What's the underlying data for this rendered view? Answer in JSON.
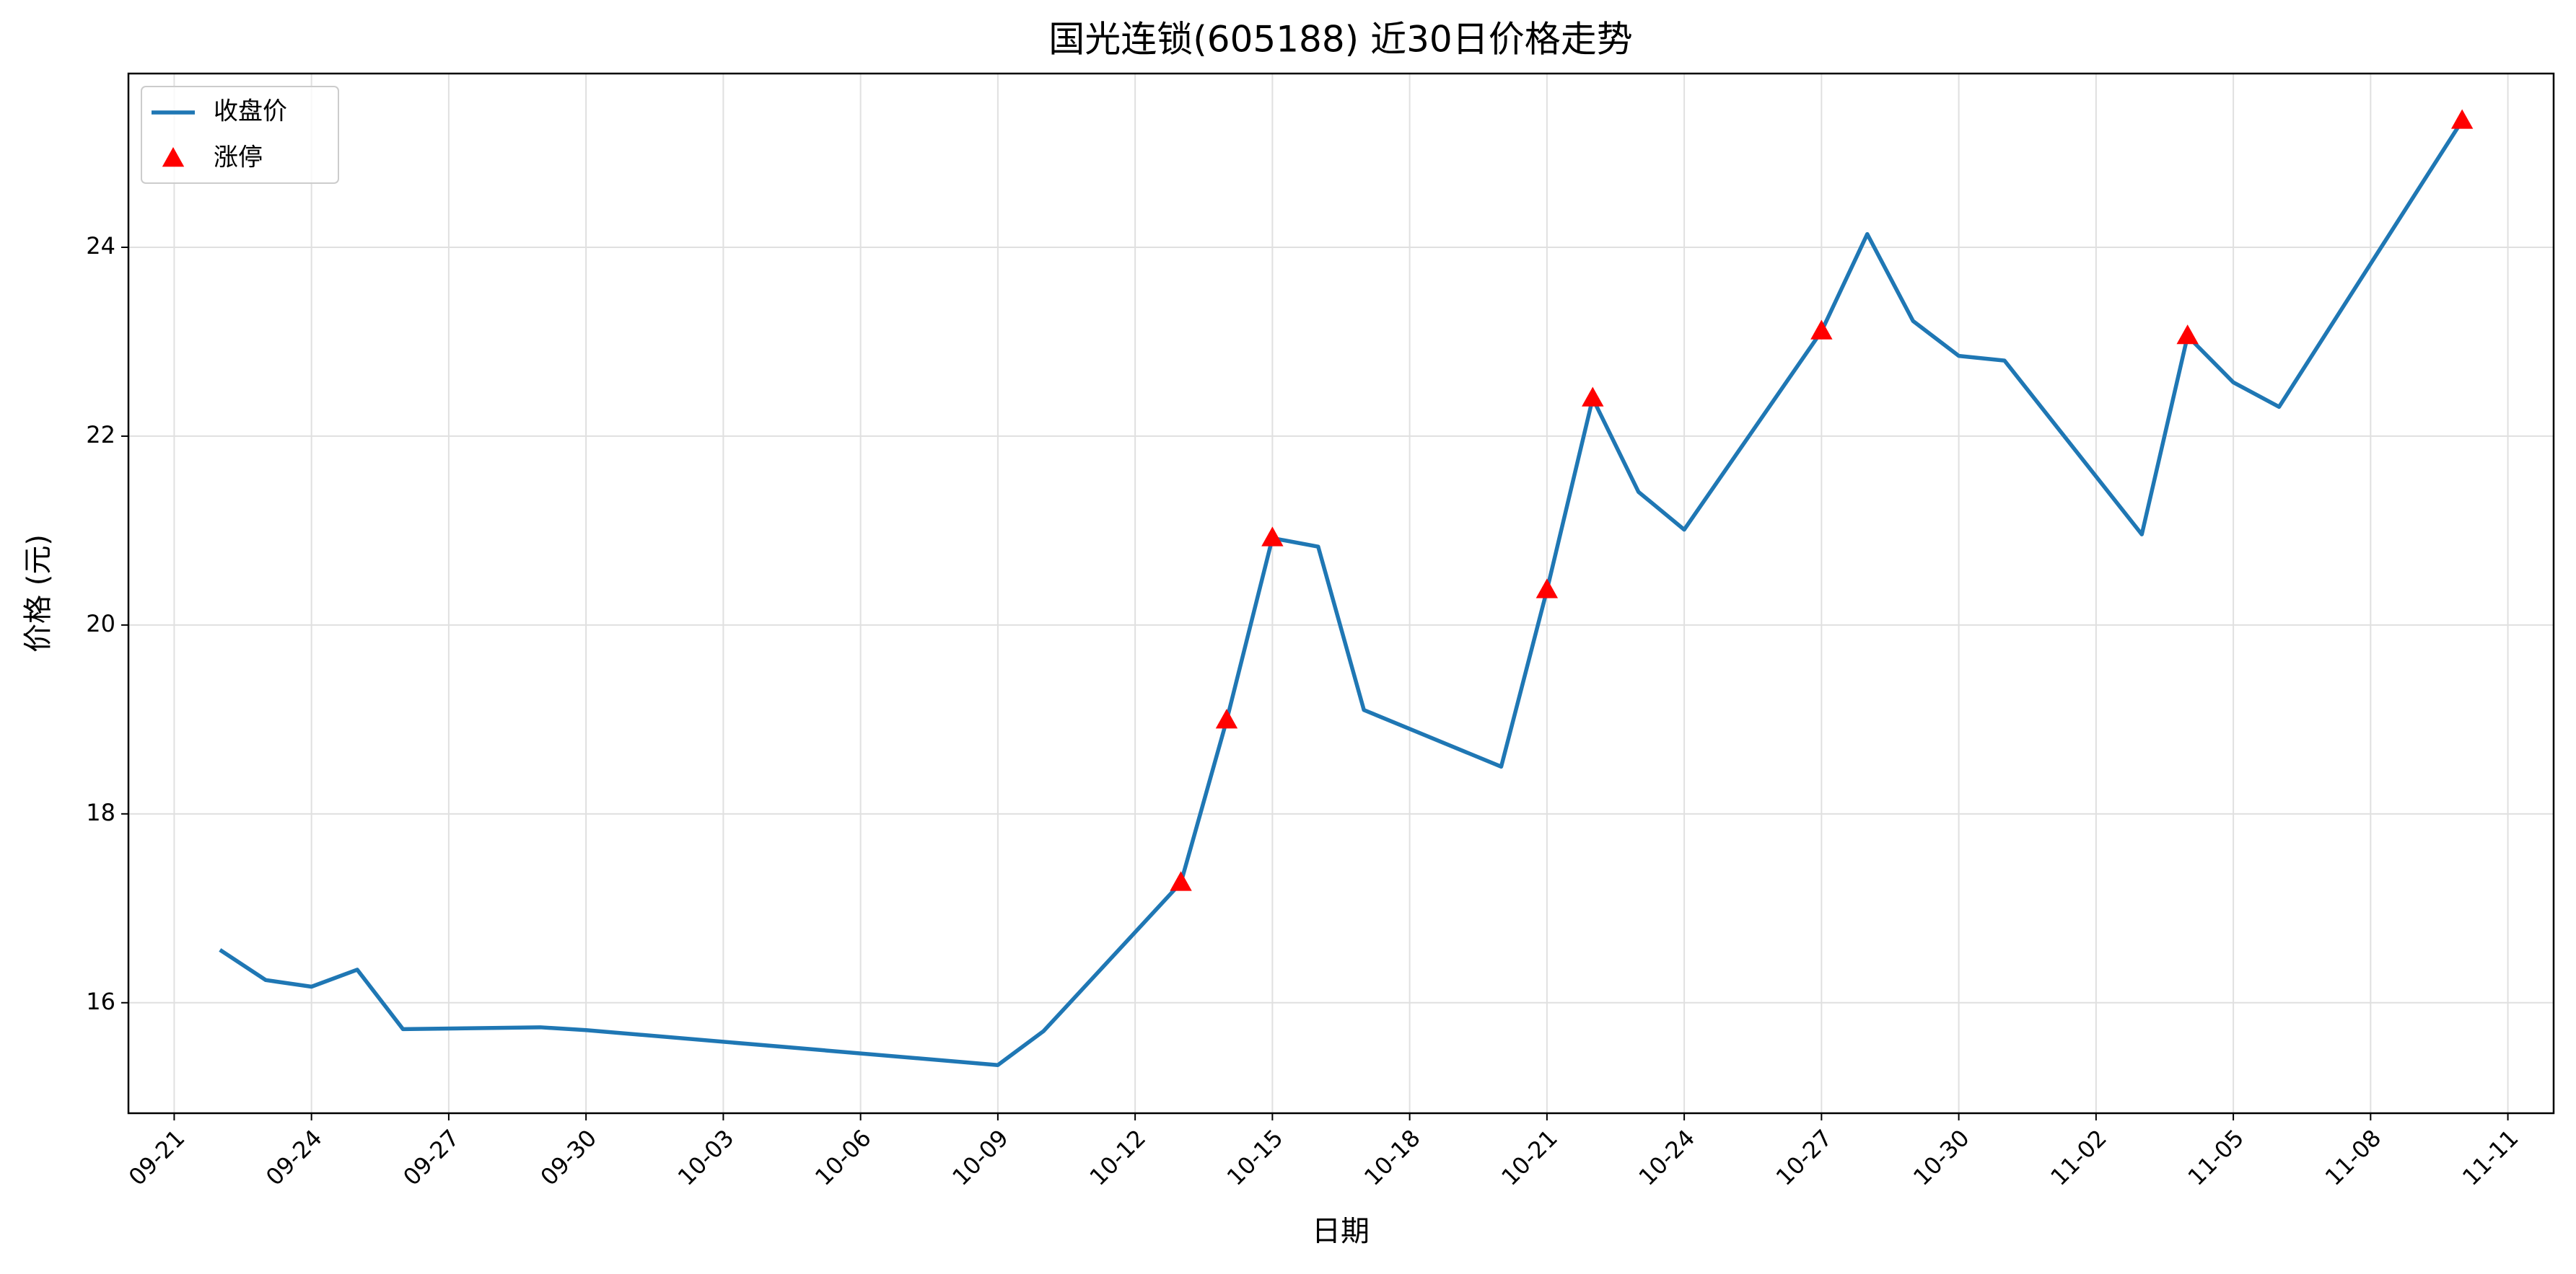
{
  "chart_data": {
    "type": "line",
    "title": "国光连锁(605188) 近30日价格走势",
    "xlabel": "日期",
    "ylabel": "价格 (元)",
    "series": [
      {
        "name": "收盘价",
        "type": "line",
        "color": "#1f77b4",
        "x": [
          "09-22",
          "09-23",
          "09-24",
          "09-25",
          "09-26",
          "09-29",
          "09-30",
          "10-09",
          "10-10",
          "10-13",
          "10-14",
          "10-15",
          "10-16",
          "10-17",
          "10-20",
          "10-21",
          "10-22",
          "10-23",
          "10-24",
          "10-27",
          "10-28",
          "10-29",
          "10-30",
          "10-31",
          "11-03",
          "11-04",
          "11-05",
          "11-06",
          "11-10"
        ],
        "values": [
          16.56,
          16.24,
          16.17,
          16.35,
          15.72,
          15.74,
          15.71,
          15.34,
          15.7,
          17.27,
          18.99,
          20.92,
          20.83,
          19.1,
          18.5,
          20.37,
          22.4,
          21.41,
          21.01,
          23.11,
          24.14,
          23.22,
          22.85,
          22.8,
          20.96,
          23.06,
          22.57,
          22.31,
          25.34
        ]
      },
      {
        "name": "涨停",
        "type": "scatter",
        "color": "#ff0000",
        "x": [
          "10-13",
          "10-14",
          "10-15",
          "10-21",
          "10-22",
          "10-27",
          "11-04",
          "11-10"
        ],
        "values": [
          17.27,
          18.99,
          20.92,
          20.37,
          22.4,
          23.11,
          23.06,
          25.34
        ]
      }
    ],
    "xlim": [
      "09-20",
      "11-12"
    ],
    "xticks": [
      "09-21",
      "09-24",
      "09-27",
      "09-30",
      "10-03",
      "10-06",
      "10-09",
      "10-12",
      "10-15",
      "10-18",
      "10-21",
      "10-24",
      "10-27",
      "10-30",
      "11-02",
      "11-05",
      "11-08",
      "11-11"
    ],
    "ylim": [
      14.83,
      25.84
    ],
    "yticks": [
      16,
      18,
      20,
      22,
      24
    ],
    "grid": true,
    "legend": "upper left"
  }
}
